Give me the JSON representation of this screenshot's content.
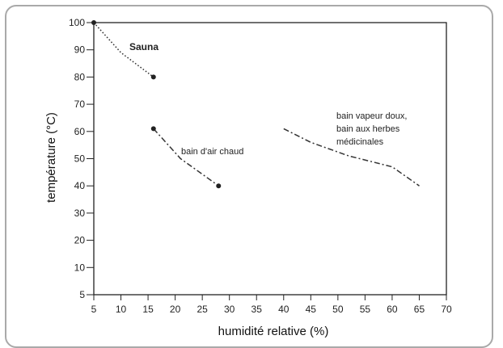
{
  "chart_data": {
    "type": "line",
    "xlabel": "humidité relative (%)",
    "ylabel": "température  (°C)",
    "xlim": [
      5,
      70
    ],
    "ylim": [
      5,
      100
    ],
    "x_ticks": [
      "5",
      "10",
      "15",
      "20",
      "25",
      "30",
      "35",
      "40",
      "45",
      "50",
      "55",
      "60",
      "65",
      "70"
    ],
    "y_ticks": [
      "5",
      "10",
      "20",
      "30",
      "40",
      "50",
      "60",
      "70",
      "80",
      "90",
      "100"
    ],
    "grid": false,
    "series": [
      {
        "name": "Sauna",
        "style": "dotted",
        "endpoints": true,
        "points": [
          [
            5,
            100
          ],
          [
            10,
            89
          ],
          [
            16,
            80
          ]
        ]
      },
      {
        "name": "bain d'air chaud",
        "style": "dash-dot",
        "endpoints": true,
        "points": [
          [
            16,
            61
          ],
          [
            21,
            50
          ],
          [
            28,
            40
          ]
        ]
      },
      {
        "name": "bain vapeur doux, bain aux herbes médicinales",
        "style": "dash-dot",
        "endpoints": false,
        "points": [
          [
            40,
            61
          ],
          [
            45,
            56
          ],
          [
            52,
            51
          ],
          [
            60,
            47
          ],
          [
            65,
            40
          ]
        ]
      }
    ],
    "annotations": {
      "sauna": "Sauna",
      "hot_air": "bain d'air chaud",
      "steam_line1": "bain vapeur doux,",
      "steam_line2": "bain aux herbes",
      "steam_line3": "médicinales"
    }
  }
}
